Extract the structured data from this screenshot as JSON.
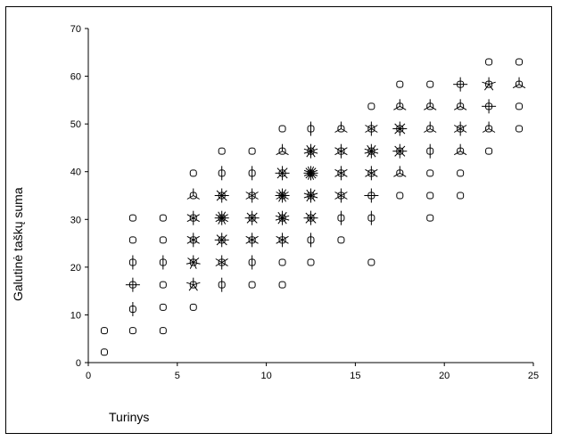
{
  "chart_data": {
    "type": "scatter",
    "marker": "sunflower",
    "xlabel": "Turinys",
    "ylabel": "Galutinė taškų suma",
    "xlim": [
      0,
      25
    ],
    "ylim": [
      0,
      70
    ],
    "xticks": [
      0,
      5,
      10,
      15,
      20,
      25
    ],
    "yticks": [
      0,
      10,
      20,
      30,
      40,
      50,
      60,
      70
    ],
    "grid": false,
    "legend": "none",
    "points": [
      {
        "x": 0.9,
        "y": 2.2,
        "count": 1
      },
      {
        "x": 0.9,
        "y": 6.7,
        "count": 1
      },
      {
        "x": 2.5,
        "y": 6.7,
        "count": 1
      },
      {
        "x": 2.5,
        "y": 11.2,
        "count": 2
      },
      {
        "x": 2.5,
        "y": 16.3,
        "count": 4
      },
      {
        "x": 2.5,
        "y": 21,
        "count": 2
      },
      {
        "x": 2.5,
        "y": 25.7,
        "count": 1
      },
      {
        "x": 2.5,
        "y": 30.3,
        "count": 1
      },
      {
        "x": 4.2,
        "y": 6.7,
        "count": 1
      },
      {
        "x": 4.2,
        "y": 11.6,
        "count": 1
      },
      {
        "x": 4.2,
        "y": 16.3,
        "count": 1
      },
      {
        "x": 4.2,
        "y": 21,
        "count": 2
      },
      {
        "x": 4.2,
        "y": 25.7,
        "count": 1
      },
      {
        "x": 4.2,
        "y": 30.3,
        "count": 1
      },
      {
        "x": 5.9,
        "y": 11.6,
        "count": 1
      },
      {
        "x": 5.9,
        "y": 16.3,
        "count": 5
      },
      {
        "x": 5.9,
        "y": 21,
        "count": 7
      },
      {
        "x": 5.9,
        "y": 25.7,
        "count": 6
      },
      {
        "x": 5.9,
        "y": 30.3,
        "count": 6
      },
      {
        "x": 5.9,
        "y": 35,
        "count": 3
      },
      {
        "x": 5.9,
        "y": 39.7,
        "count": 1
      },
      {
        "x": 7.5,
        "y": 16.3,
        "count": 2
      },
      {
        "x": 7.5,
        "y": 21,
        "count": 6
      },
      {
        "x": 7.5,
        "y": 25.7,
        "count": 8
      },
      {
        "x": 7.5,
        "y": 30.3,
        "count": 12
      },
      {
        "x": 7.5,
        "y": 35,
        "count": 8
      },
      {
        "x": 7.5,
        "y": 39.7,
        "count": 2
      },
      {
        "x": 7.5,
        "y": 44.3,
        "count": 1
      },
      {
        "x": 9.2,
        "y": 16.3,
        "count": 1
      },
      {
        "x": 9.2,
        "y": 21,
        "count": 2
      },
      {
        "x": 9.2,
        "y": 25.7,
        "count": 6
      },
      {
        "x": 9.2,
        "y": 30.3,
        "count": 8
      },
      {
        "x": 9.2,
        "y": 35,
        "count": 6
      },
      {
        "x": 9.2,
        "y": 39.7,
        "count": 2
      },
      {
        "x": 9.2,
        "y": 44.3,
        "count": 1
      },
      {
        "x": 10.9,
        "y": 16.3,
        "count": 1
      },
      {
        "x": 10.9,
        "y": 21,
        "count": 1
      },
      {
        "x": 10.9,
        "y": 25.7,
        "count": 6
      },
      {
        "x": 10.9,
        "y": 30.3,
        "count": 10
      },
      {
        "x": 10.9,
        "y": 35,
        "count": 12
      },
      {
        "x": 10.9,
        "y": 39.7,
        "count": 8
      },
      {
        "x": 10.9,
        "y": 44.3,
        "count": 3
      },
      {
        "x": 10.9,
        "y": 49,
        "count": 1
      },
      {
        "x": 12.5,
        "y": 21,
        "count": 1
      },
      {
        "x": 12.5,
        "y": 25.7,
        "count": 2
      },
      {
        "x": 12.5,
        "y": 30.3,
        "count": 8
      },
      {
        "x": 12.5,
        "y": 35,
        "count": 10
      },
      {
        "x": 12.5,
        "y": 39.7,
        "count": 16
      },
      {
        "x": 12.5,
        "y": 44.3,
        "count": 10
      },
      {
        "x": 12.5,
        "y": 49,
        "count": 2
      },
      {
        "x": 14.2,
        "y": 25.7,
        "count": 1
      },
      {
        "x": 14.2,
        "y": 30.3,
        "count": 2
      },
      {
        "x": 14.2,
        "y": 35,
        "count": 6
      },
      {
        "x": 14.2,
        "y": 39.7,
        "count": 6
      },
      {
        "x": 14.2,
        "y": 44.3,
        "count": 6
      },
      {
        "x": 14.2,
        "y": 49,
        "count": 3
      },
      {
        "x": 15.9,
        "y": 21,
        "count": 1
      },
      {
        "x": 15.9,
        "y": 30.3,
        "count": 2
      },
      {
        "x": 15.9,
        "y": 35,
        "count": 4
      },
      {
        "x": 15.9,
        "y": 39.7,
        "count": 6
      },
      {
        "x": 15.9,
        "y": 44.3,
        "count": 10
      },
      {
        "x": 15.9,
        "y": 49,
        "count": 6
      },
      {
        "x": 15.9,
        "y": 53.7,
        "count": 1
      },
      {
        "x": 17.5,
        "y": 35,
        "count": 1
      },
      {
        "x": 17.5,
        "y": 39.7,
        "count": 3
      },
      {
        "x": 17.5,
        "y": 44.3,
        "count": 8
      },
      {
        "x": 17.5,
        "y": 49,
        "count": 8
      },
      {
        "x": 17.5,
        "y": 53.7,
        "count": 3
      },
      {
        "x": 17.5,
        "y": 58.3,
        "count": 1
      },
      {
        "x": 19.2,
        "y": 30.3,
        "count": 1
      },
      {
        "x": 19.2,
        "y": 35,
        "count": 1
      },
      {
        "x": 19.2,
        "y": 39.7,
        "count": 1
      },
      {
        "x": 19.2,
        "y": 44.3,
        "count": 2
      },
      {
        "x": 19.2,
        "y": 49,
        "count": 3
      },
      {
        "x": 19.2,
        "y": 53.7,
        "count": 3
      },
      {
        "x": 19.2,
        "y": 58.3,
        "count": 1
      },
      {
        "x": 20.9,
        "y": 35,
        "count": 1
      },
      {
        "x": 20.9,
        "y": 39.7,
        "count": 1
      },
      {
        "x": 20.9,
        "y": 44.3,
        "count": 3
      },
      {
        "x": 20.9,
        "y": 49,
        "count": 6
      },
      {
        "x": 20.9,
        "y": 53.7,
        "count": 3
      },
      {
        "x": 20.9,
        "y": 58.3,
        "count": 4
      },
      {
        "x": 22.5,
        "y": 44.3,
        "count": 1
      },
      {
        "x": 22.5,
        "y": 49,
        "count": 3
      },
      {
        "x": 22.5,
        "y": 53.7,
        "count": 4
      },
      {
        "x": 22.5,
        "y": 58.3,
        "count": 5
      },
      {
        "x": 22.5,
        "y": 63,
        "count": 1
      },
      {
        "x": 24.2,
        "y": 49,
        "count": 1
      },
      {
        "x": 24.2,
        "y": 53.7,
        "count": 1
      },
      {
        "x": 24.2,
        "y": 58.3,
        "count": 3
      },
      {
        "x": 24.2,
        "y": 63,
        "count": 1
      }
    ]
  }
}
